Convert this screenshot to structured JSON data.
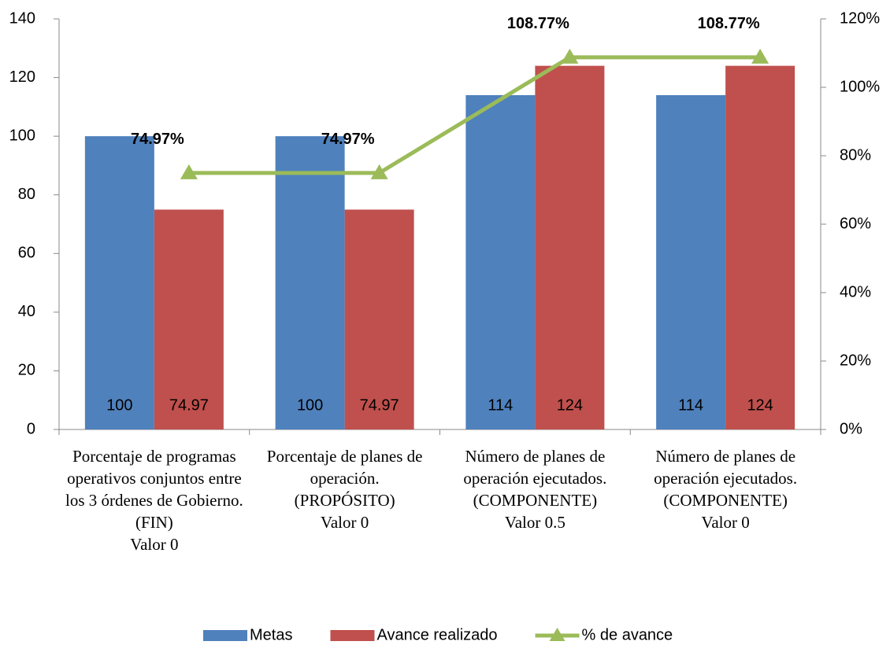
{
  "chart_data": {
    "type": "bar",
    "categories": [
      "Porcentaje de programas operativos conjuntos entre los 3 órdenes de Gobierno.\n(FIN)\nValor 0",
      "Porcentaje de planes de operación.\n(PROPÓSITO)\nValor 0",
      "Número de planes de operación ejecutados.\n(COMPONENTE)\nValor 0.5",
      "Número de planes de operación ejecutados.\n(COMPONENTE)\nValor 0"
    ],
    "series": [
      {
        "name": "Metas",
        "type": "bar",
        "color": "#4f81bd",
        "values": [
          100,
          100,
          114,
          114
        ]
      },
      {
        "name": "Avance realizado",
        "type": "bar",
        "color": "#c0504d",
        "values": [
          74.97,
          74.97,
          124,
          124
        ]
      },
      {
        "name": "% de avance",
        "type": "line",
        "axis": "y2",
        "color": "#9bbb59",
        "values": [
          74.97,
          74.97,
          108.77,
          108.77
        ],
        "value_labels": [
          "74.97%",
          "74.97%",
          "108.77%",
          "108.77%"
        ]
      }
    ],
    "ylim": [
      0,
      140
    ],
    "yticks": [
      0,
      20,
      40,
      60,
      80,
      100,
      120,
      140
    ],
    "y2lim": [
      0,
      120
    ],
    "y2ticks": [
      {
        "value": 0,
        "label": "0%"
      },
      {
        "value": 20,
        "label": "20%"
      },
      {
        "value": 40,
        "label": "40%"
      },
      {
        "value": 60,
        "label": "60%"
      },
      {
        "value": 80,
        "label": "80%"
      },
      {
        "value": 100,
        "label": "100%"
      },
      {
        "value": 120,
        "label": "120%"
      }
    ],
    "legend": "bottom"
  }
}
